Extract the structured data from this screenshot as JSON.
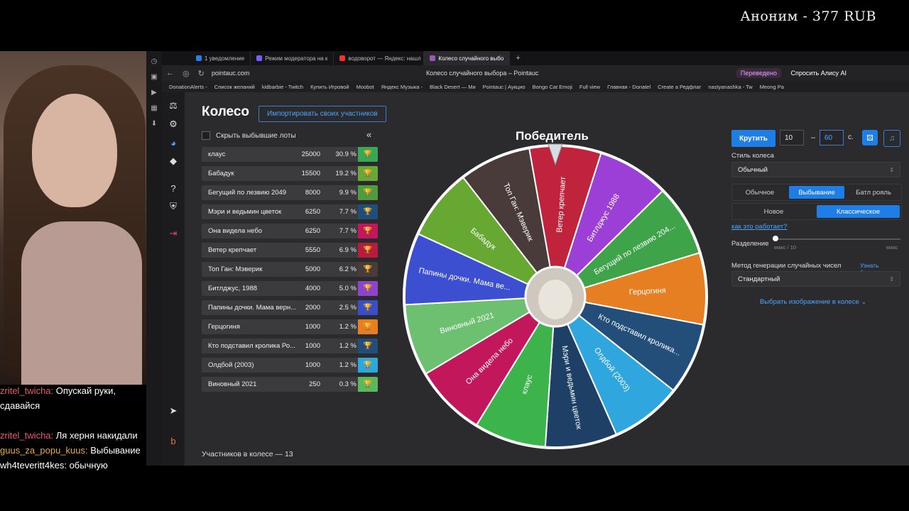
{
  "overlay": {
    "donation": "Аноним - 377 RUB",
    "chat": [
      {
        "nick": "zritel_twicha:",
        "text": "Опускай руки, сдавайся"
      },
      {
        "nick": "zritel_twicha:",
        "text": "Ля херня накидали"
      },
      {
        "nick": "guus_za_popu_kuus:",
        "text": "Выбывание"
      },
      {
        "nick": "wh4teveritt4kes:",
        "text": "обычную"
      }
    ]
  },
  "browser": {
    "tabs": [
      "1 уведомление",
      "Режим модератора на к",
      "водоворот — Яндекс: нашл",
      "Колесо случайного выбо"
    ],
    "url": "pointauc.com",
    "page_title": "Колесо случайного выбора – Pointauc",
    "translated": "Переведено",
    "alice": "Спросить Алису AI",
    "bookmarks": [
      "DonationAlerts -",
      "Список желаний",
      "kidbarbie - Twitch",
      "Купить Игровой",
      "Moobot",
      "Яндекс Музыка -",
      "Black Desert — Ми",
      "Pointauc | Аукцио",
      "Bongo Cat Emoji",
      "Full view",
      "Главная - Donatel",
      "Create a Редфлаг",
      "nastyanashka - Tw",
      "Meong Pa"
    ]
  },
  "app": {
    "title": "Колесо",
    "import_label": "Импортировать своих участников",
    "hide_label": "Скрыть выбывшие лоты",
    "count_label": "Участников в колесе — 13",
    "winner_title": "Победитель",
    "lots": [
      {
        "name": "клаус",
        "amount": "25000",
        "pct": "30.9 %",
        "color": "#3aa757"
      },
      {
        "name": "Бабадук",
        "amount": "15500",
        "pct": "19.2 %",
        "color": "#6aa63a"
      },
      {
        "name": "Бегущий по лезвию 2049",
        "amount": "8000",
        "pct": "9.9 %",
        "color": "#4f9b3d"
      },
      {
        "name": "Мэри и ведьмин цветок",
        "amount": "6250",
        "pct": "7.7 %",
        "color": "#1f4e79"
      },
      {
        "name": "Она видела небо",
        "amount": "6250",
        "pct": "7.7 %",
        "color": "#c2185b"
      },
      {
        "name": "Ветер крепчает",
        "amount": "5550",
        "pct": "6.9 %",
        "color": "#b71c3c"
      },
      {
        "name": "Топ Ган: Мэверик",
        "amount": "5000",
        "pct": "6.2 %",
        "color": "#4a3b3b"
      },
      {
        "name": "Битлджус, 1988",
        "amount": "4000",
        "pct": "5.0 %",
        "color": "#8e44c8"
      },
      {
        "name": "Папины дочки. Мама верн...",
        "amount": "2000",
        "pct": "2.5 %",
        "color": "#3a4fc4"
      },
      {
        "name": "Герцогиня",
        "amount": "1000",
        "pct": "1.2 %",
        "color": "#e67e22"
      },
      {
        "name": "Кто подставил кролика Ро...",
        "amount": "1000",
        "pct": "1.2 %",
        "color": "#234e7a"
      },
      {
        "name": "Олдбой (2003)",
        "amount": "1000",
        "pct": "1.2 %",
        "color": "#2da8d8"
      },
      {
        "name": "Виновный 2021",
        "amount": "250",
        "pct": "0.3 %",
        "color": "#5cb85c"
      }
    ],
    "wheel": [
      {
        "label": "Ветер крепчает",
        "color": "#c0243c"
      },
      {
        "label": "Битлджус 1988",
        "color": "#9b3fd6"
      },
      {
        "label": "Бегущий по лезвию 204...",
        "color": "#3fa34a"
      },
      {
        "label": "Герцогиня",
        "color": "#e67e22"
      },
      {
        "label": "Кто подставил кролика...",
        "color": "#234e7a"
      },
      {
        "label": "Олдбой (2003)",
        "color": "#2fa6de"
      },
      {
        "label": "Мэри и ведьмин цветок",
        "color": "#1e3f66"
      },
      {
        "label": "клаус",
        "color": "#3cb44b"
      },
      {
        "label": "Она видела небо",
        "color": "#c2185b"
      },
      {
        "label": "Виновный 2021",
        "color": "#6cc070"
      },
      {
        "label": "Папины дочки. Мама ве...",
        "color": "#3b4fd0"
      },
      {
        "label": "Бабадук",
        "color": "#66a832"
      },
      {
        "label": "Топ Ган: Мэверик",
        "color": "#4a3b3b"
      }
    ],
    "controls": {
      "spin_label": "Крутить",
      "min_value": "10",
      "max_value": "60",
      "sec_label": "с.",
      "style_label": "Стиль колеса",
      "style_value": "Обычный",
      "modes": [
        "Обычное",
        "Выбывание",
        "Батл рояль"
      ],
      "active_mode": "Выбывание",
      "variants": [
        "Новое",
        "Классическое"
      ],
      "active_variant": "Классическое",
      "how_link": "как это работает?",
      "split_label": "Разделение",
      "split_min": "макс / 10",
      "split_max": "макс",
      "rng_label": "Метод генерации случайных чисел",
      "rng_more": "Узнать больше",
      "rng_value": "Стандартный",
      "image_link": "Выбрать изображение в колесе"
    }
  }
}
